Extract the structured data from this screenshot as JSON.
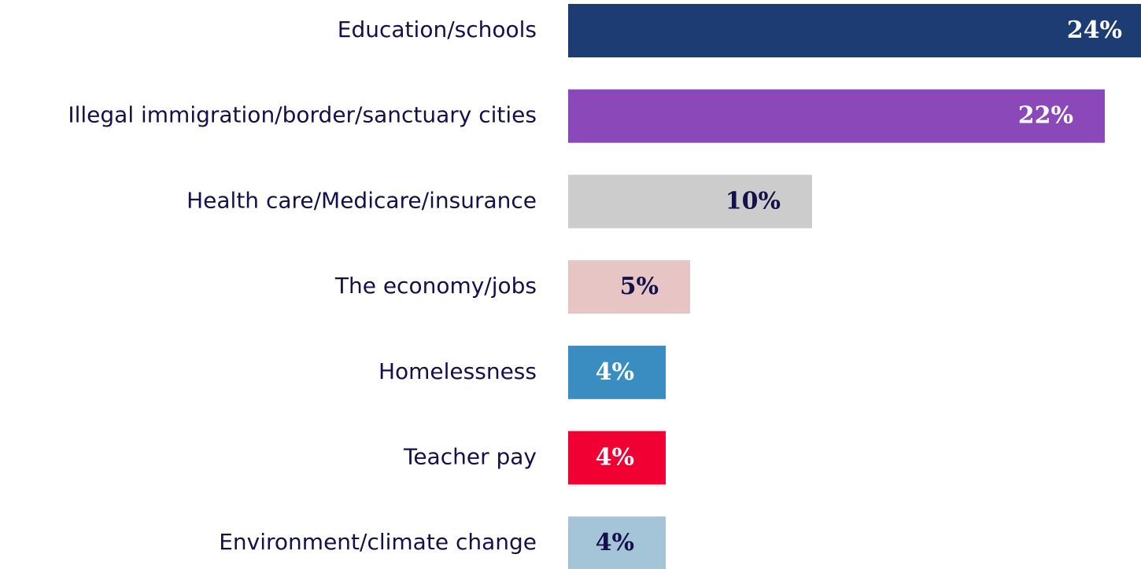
{
  "chart_data": {
    "type": "bar",
    "orientation": "horizontal",
    "categories": [
      "Education/schools",
      "Illegal immigration/border/sanctuary cities",
      "Health care/Medicare/insurance",
      "The economy/jobs",
      "Homelessness",
      "Teacher pay",
      "Environment/climate change"
    ],
    "values": [
      24,
      22,
      10,
      5,
      4,
      4,
      4
    ],
    "value_labels": [
      "24%",
      "22%",
      "10%",
      "5%",
      "4%",
      "4%",
      "4%"
    ],
    "colors": [
      "#1d3c74",
      "#8b48b9",
      "#cccccc",
      "#e8c5c5",
      "#3a8dc1",
      "#f00033",
      "#a4c4d8"
    ],
    "label_colors": [
      "#ffffff",
      "#ffffff",
      "#14104a",
      "#14104a",
      "#ffffff",
      "#ffffff",
      "#14104a"
    ]
  }
}
